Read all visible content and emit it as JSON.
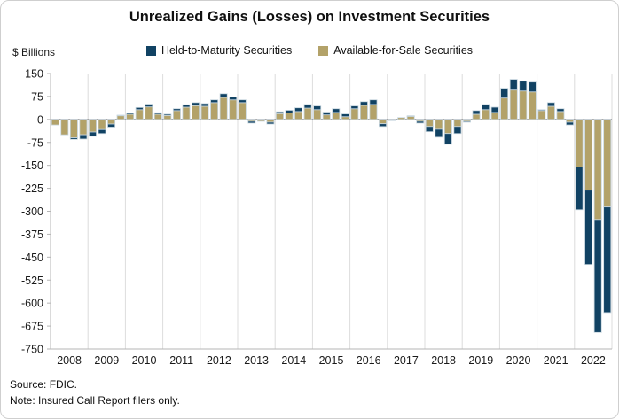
{
  "title": "Unrealized Gains (Losses) on Investment Securities",
  "y_axis_unit": "$ Billions",
  "legend": [
    {
      "label": "Held-to-Maturity Securities",
      "color": "#114263"
    },
    {
      "label": "Available-for-Sale Securities",
      "color": "#b3a269"
    }
  ],
  "footer": {
    "source": "Source: FDIC.",
    "note": "Note: Insured Call Report filers only."
  },
  "colors": {
    "htm": "#114263",
    "afs": "#b3a269",
    "bar_outline": "#c6d5de",
    "gridline": "#dcdcdc",
    "axis_line": "#b5b5b5",
    "zero_line": "#8f8f8f",
    "text": "#1a1a1a"
  },
  "chart_data": {
    "type": "bar",
    "stacked": true,
    "title": "Unrealized Gains (Losses) on Investment Securities",
    "ylabel": "$ Billions",
    "ylim": [
      -750,
      150
    ],
    "y_ticks": [
      150,
      75,
      0,
      -75,
      -150,
      -225,
      -300,
      -375,
      -450,
      -525,
      -600,
      -675,
      -750
    ],
    "x_tick_labels": [
      "2008",
      "2009",
      "2010",
      "2011",
      "2012",
      "2013",
      "2014",
      "2015",
      "2016",
      "2017",
      "2018",
      "2019",
      "2020",
      "2021",
      "2022"
    ],
    "quarters_per_year": 4,
    "legend_position": "top",
    "grid": "vertical-year-lines-only",
    "categories": [
      "2008Q1",
      "2008Q2",
      "2008Q3",
      "2008Q4",
      "2009Q1",
      "2009Q2",
      "2009Q3",
      "2009Q4",
      "2010Q1",
      "2010Q2",
      "2010Q3",
      "2010Q4",
      "2011Q1",
      "2011Q2",
      "2011Q3",
      "2011Q4",
      "2012Q1",
      "2012Q2",
      "2012Q3",
      "2012Q4",
      "2013Q1",
      "2013Q2",
      "2013Q3",
      "2013Q4",
      "2014Q1",
      "2014Q2",
      "2014Q3",
      "2014Q4",
      "2015Q1",
      "2015Q2",
      "2015Q3",
      "2015Q4",
      "2016Q1",
      "2016Q2",
      "2016Q3",
      "2016Q4",
      "2017Q1",
      "2017Q2",
      "2017Q3",
      "2017Q4",
      "2018Q1",
      "2018Q2",
      "2018Q3",
      "2018Q4",
      "2019Q1",
      "2019Q2",
      "2019Q3",
      "2019Q4",
      "2020Q1",
      "2020Q2",
      "2020Q3",
      "2020Q4",
      "2021Q1",
      "2021Q2",
      "2021Q3",
      "2021Q4",
      "2022Q1",
      "2022Q2",
      "2022Q3",
      "2022Q4"
    ],
    "series": [
      {
        "name": "Held-to-Maturity Securities",
        "color": "#114263",
        "values": [
          0,
          0,
          -5,
          -14,
          -14,
          -13,
          -10,
          2,
          4,
          7,
          9,
          5,
          4,
          6,
          8,
          10,
          9,
          9,
          12,
          9,
          9,
          -6,
          0,
          -6,
          6,
          9,
          12,
          12,
          12,
          9,
          12,
          9,
          9,
          12,
          15,
          -9,
          0,
          0,
          2,
          -6,
          -17,
          -26,
          -35,
          -23,
          -3,
          12,
          17,
          17,
          32,
          35,
          32,
          32,
          3,
          12,
          9,
          -9,
          -140,
          -243,
          -369,
          -345
        ]
      },
      {
        "name": "Available-for-Sale Securities",
        "color": "#b3a269",
        "values": [
          -18,
          -50,
          -60,
          -50,
          -41,
          -33,
          -15,
          12,
          17,
          32,
          41,
          17,
          13,
          29,
          40,
          45,
          43,
          55,
          72,
          64,
          55,
          -6,
          -6,
          -9,
          19,
          21,
          26,
          37,
          32,
          15,
          23,
          9,
          35,
          46,
          49,
          -14,
          -4,
          6,
          10,
          -6,
          -23,
          -32,
          -46,
          -23,
          -6,
          17,
          32,
          23,
          70,
          96,
          93,
          90,
          29,
          43,
          26,
          -9,
          -155,
          -231,
          -327,
          -286
        ]
      }
    ]
  }
}
